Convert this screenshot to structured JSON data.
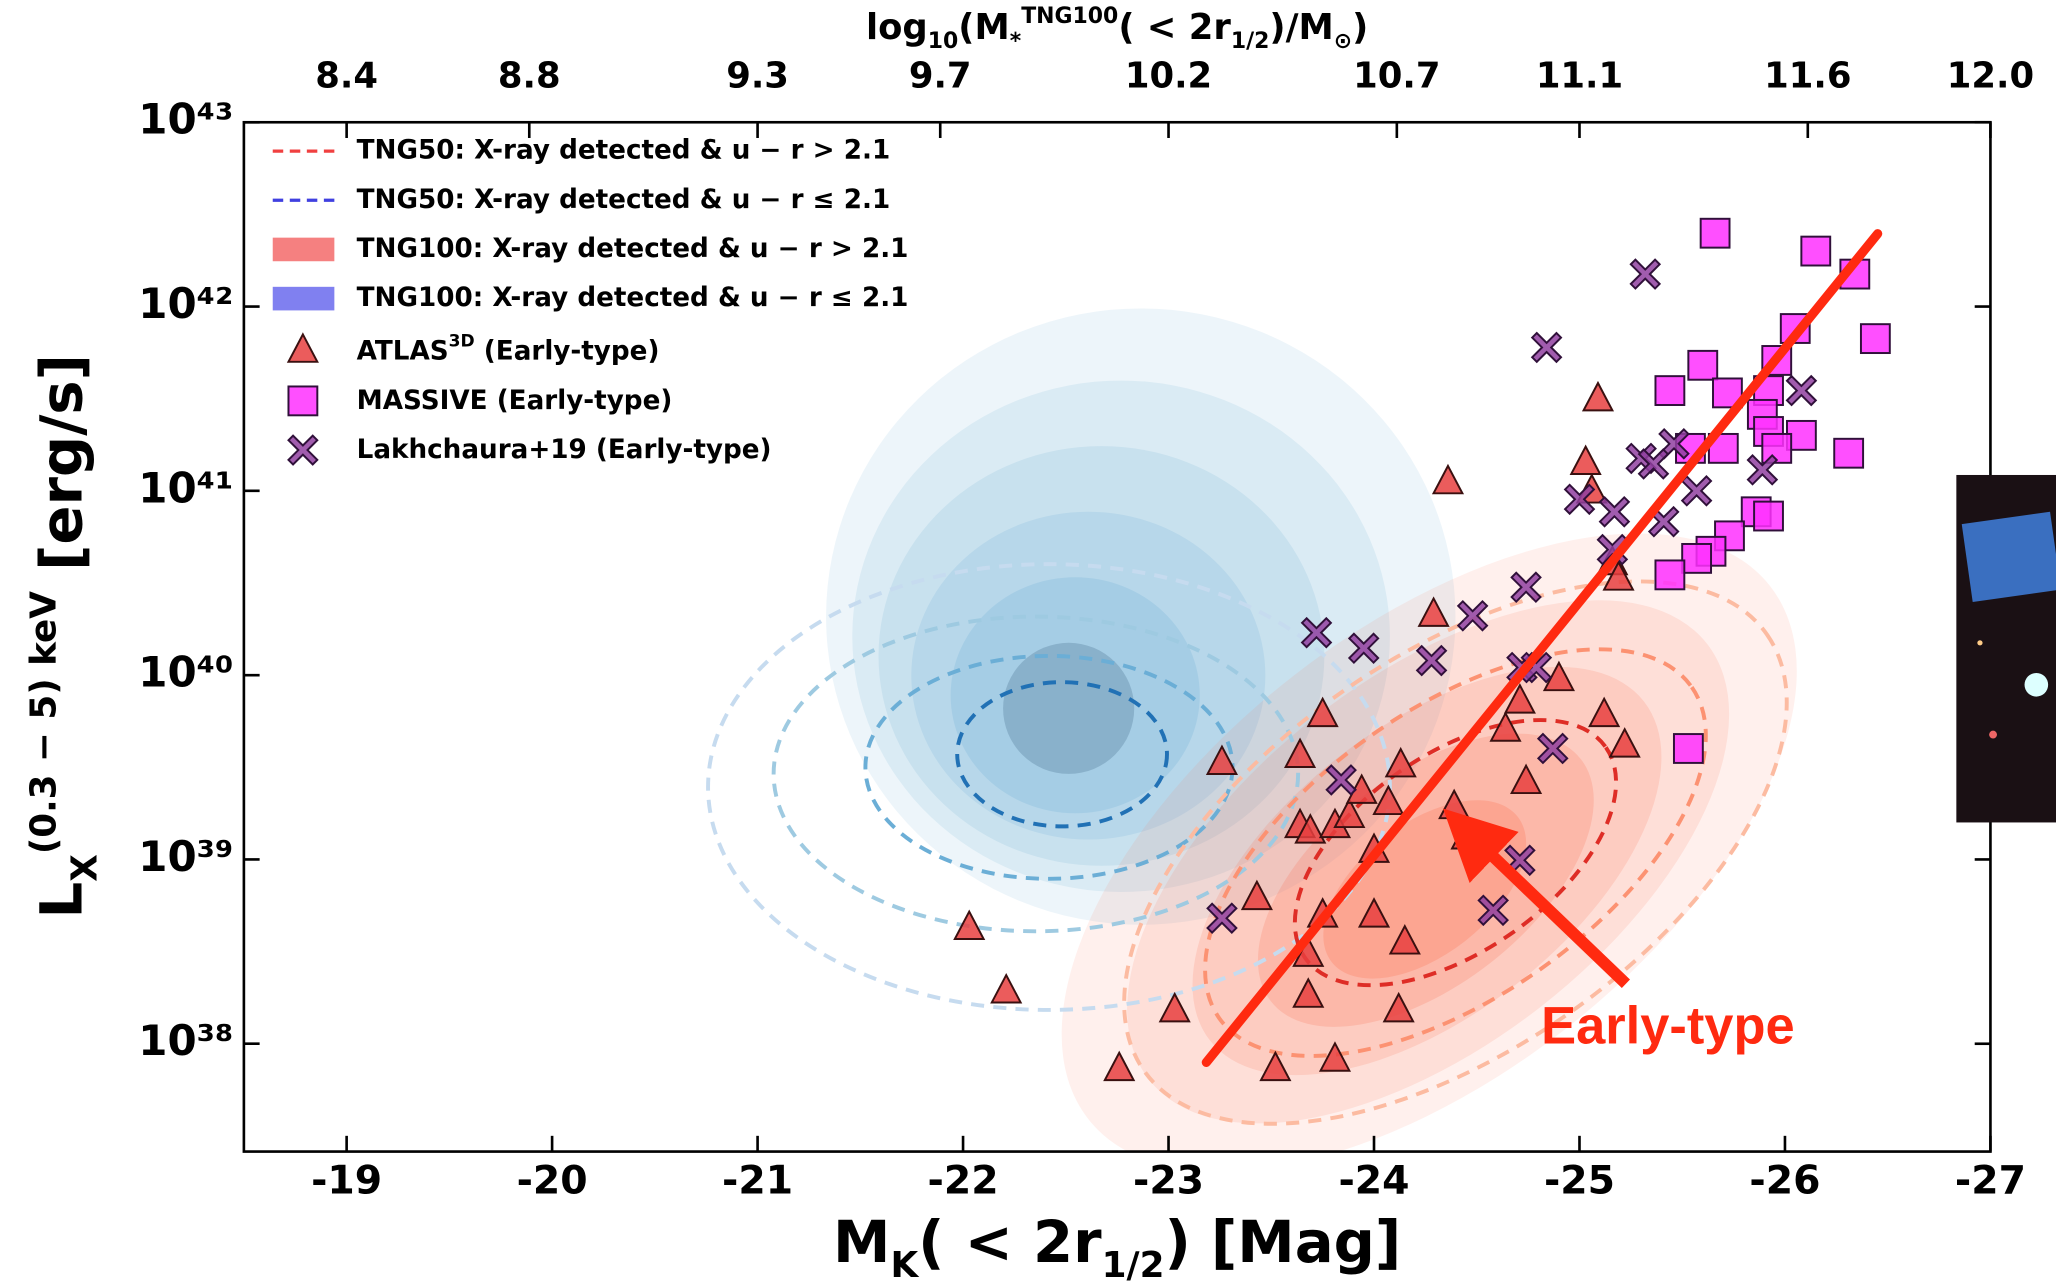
{
  "chart_data": {
    "type": "scatter",
    "y_log": true,
    "xlim": [
      -18.5,
      -27
    ],
    "xticks": [
      -19,
      -20,
      -21,
      -22,
      -23,
      -24,
      -25,
      -26,
      -27
    ],
    "ylim": [
      2.6e+37,
      1e+43
    ],
    "yticks": [
      {
        "value": 1e+38,
        "label": "10³⁸"
      },
      {
        "value": 1e+39,
        "label": "10³⁹"
      },
      {
        "value": 1e+40,
        "label": "10⁴⁰"
      },
      {
        "value": 1e+41,
        "label": "10⁴¹"
      },
      {
        "value": 1e+42,
        "label": "10⁴²"
      },
      {
        "value": 1e+43,
        "label": "10⁴³"
      }
    ],
    "x2lim": [
      8.175,
      12.0
    ],
    "x2ticks": [
      8.4,
      8.8,
      9.3,
      9.7,
      10.2,
      10.7,
      11.1,
      11.6,
      {
        "value": 12.0,
        "label": "12.0"
      }
    ],
    "x_label": [
      {
        "text": "M"
      },
      {
        "text": "K",
        "style": "sub"
      },
      {
        "text": "( < 2r"
      },
      {
        "text": "1/2",
        "style": "sub"
      },
      {
        "text": ") [Mag]"
      }
    ],
    "y_label": [
      {
        "text": "L"
      },
      {
        "text": "X",
        "style": "sub"
      },
      {
        "text": "(0.3 − 5) keV",
        "style": "sup"
      },
      {
        "text": " [erg/s]"
      }
    ],
    "x2_label": [
      {
        "text": "log"
      },
      {
        "text": "10",
        "style": "sub"
      },
      {
        "text": "(M"
      },
      {
        "text": "*",
        "style": "sub"
      },
      {
        "text": "TNG100",
        "style": "sup"
      },
      {
        "text": "( < 2r"
      },
      {
        "text": "1/2",
        "style": "sub"
      },
      {
        "text": ")/M"
      },
      {
        "text": "⊙",
        "style": "sub"
      },
      {
        "text": ")"
      }
    ],
    "contour_legend": [
      {
        "name": "TNG50: X-ray detected & u − r > 2.1",
        "color": "#f04040",
        "style": "dashed"
      },
      {
        "name": "TNG50: X-ray detected & u − r ≤ 2.1",
        "color": "#4040e0",
        "style": "dashed"
      },
      {
        "name": "TNG100: X-ray detected & u − r > 2.1",
        "color": "#f58080",
        "style": "patch"
      },
      {
        "name": "TNG100: X-ray detected & u − r ≤ 2.1",
        "color": "#8080f0",
        "style": "patch"
      }
    ],
    "annotation": "Early-type",
    "series": [
      {
        "name": "ATLAS",
        "name_sup": "3D",
        "name_suffix": " (Early-type)",
        "marker": "triangle",
        "color": "#e84040",
        "x": [
          -22.03,
          -22.21,
          -22.76,
          -23.03,
          -23.26,
          -23.43,
          -23.52,
          -23.64,
          -23.68,
          -23.75,
          -23.64,
          -23.69,
          -23.81,
          -23.88,
          -23.94,
          -24.0,
          -24.0,
          -24.07,
          -24.13,
          -24.12,
          -24.15,
          -24.29,
          -24.36,
          -24.39,
          -24.45,
          -24.64,
          -24.71,
          -24.74,
          -24.9,
          -25.03,
          -25.06,
          -25.09,
          -25.16,
          -25.19,
          -25.12,
          -25.22,
          -23.68,
          -23.81,
          -23.75
        ],
        "values": [
          4.2e+38,
          1.9e+38,
          7.2e+37,
          1.5e+38,
          3.3e+39,
          6.1e+38,
          7.2e+37,
          3.6e+39,
          3e+38,
          6e+39,
          1.5e+39,
          1.4e+39,
          1.5e+39,
          1.7e+39,
          2.3e+39,
          1.1e+39,
          4.9e+38,
          2e+39,
          3.2e+39,
          1.5e+38,
          3.5e+38,
          2.1e+40,
          1.1e+41,
          1.9e+39,
          1.3e+39,
          5e+39,
          7.1e+39,
          2.6e+39,
          9.4e+39,
          1.4e+41,
          9.8e+40,
          3.1e+41,
          4e+40,
          3.3e+40,
          6e+39,
          4.1e+39,
          1.8e+38,
          8.1e+37,
          4.9e+38
        ]
      },
      {
        "name": "MASSIVE (Early-type)",
        "marker": "square",
        "color": "#ff30ff",
        "x": [
          -25.66,
          -26.15,
          -26.34,
          -26.44,
          -26.05,
          -25.96,
          -25.6,
          -25.44,
          -25.72,
          -25.92,
          -25.89,
          -25.92,
          -26.08,
          -25.96,
          -25.54,
          -25.7,
          -26.31,
          -25.86,
          -25.92,
          -25.73,
          -25.64,
          -25.57,
          -25.44,
          -25.53
        ],
        "values": [
          2.5e+42,
          2e+42,
          1.5e+42,
          6.7e+41,
          7.6e+41,
          5.1e+41,
          4.8e+41,
          3.5e+41,
          3.4e+41,
          3.5e+41,
          2.6e+41,
          2.1e+41,
          2e+41,
          1.7e+41,
          1.7e+41,
          1.7e+41,
          1.6e+41,
          7.7e+40,
          7.3e+40,
          5.7e+40,
          4.7e+40,
          4.3e+40,
          3.5e+40,
          4e+39
        ]
      },
      {
        "name": "Lakhchaura+19 (Early-type)",
        "marker": "cross",
        "color": "#9040a0",
        "x": [
          -25.32,
          -24.84,
          -26.08,
          -25.46,
          -25.3,
          -25.36,
          -25.57,
          -25.89,
          -25.0,
          -25.17,
          -25.41,
          -25.16,
          -24.74,
          -24.48,
          -23.72,
          -23.95,
          -24.28,
          -24.72,
          -24.79,
          -24.87,
          -23.84,
          -24.71,
          -24.58,
          -23.26
        ],
        "values": [
          1.5e+42,
          6e+41,
          3.5e+41,
          1.8e+41,
          1.5e+41,
          1.4e+41,
          1e+41,
          1.3e+41,
          9e+40,
          7.7e+40,
          6.8e+40,
          4.8e+40,
          3e+40,
          2.1e+40,
          1.7e+40,
          1.4e+40,
          1.2e+40,
          1.1e+40,
          1.1e+40,
          4e+39,
          2.7e+39,
          9.9e+38,
          5.3e+38,
          4.8e+38
        ]
      }
    ]
  }
}
